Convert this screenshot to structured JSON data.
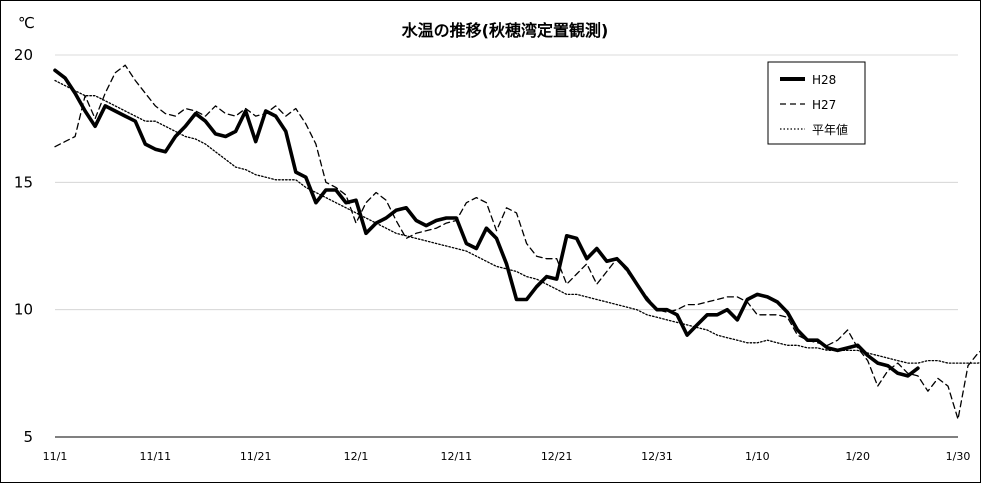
{
  "chart_data": {
    "type": "line",
    "title": "水温の推移(秋穂湾定置観測)",
    "ylabel": "℃",
    "xlabel": "",
    "ylim": [
      5,
      20
    ],
    "yticks": [
      5,
      10,
      15,
      20
    ],
    "x_tick_labels": [
      {
        "day": 0,
        "label": "11/1"
      },
      {
        "day": 10,
        "label": "11/11"
      },
      {
        "day": 20,
        "label": "11/21"
      },
      {
        "day": 30,
        "label": "12/1"
      },
      {
        "day": 40,
        "label": "12/11"
      },
      {
        "day": 50,
        "label": "12/21"
      },
      {
        "day": 60,
        "label": "12/31"
      },
      {
        "day": 70,
        "label": "1/10"
      },
      {
        "day": 80,
        "label": "1/20"
      },
      {
        "day": 90,
        "label": "1/30"
      }
    ],
    "grid": "horizontal",
    "legend_position": "top-right",
    "series": [
      {
        "name": "H28",
        "style": "solid-thick",
        "values": [
          19.4,
          19.1,
          18.5,
          17.8,
          17.2,
          18.0,
          17.8,
          17.6,
          17.4,
          16.5,
          16.3,
          16.2,
          16.8,
          17.2,
          17.7,
          17.4,
          16.9,
          16.8,
          17.0,
          17.8,
          16.6,
          17.8,
          17.6,
          17.0,
          15.4,
          15.2,
          14.2,
          14.7,
          14.7,
          14.2,
          14.3,
          13.0,
          13.4,
          13.6,
          13.9,
          14.0,
          13.5,
          13.3,
          13.5,
          13.6,
          13.6,
          12.6,
          12.4,
          13.2,
          12.8,
          11.8,
          10.4,
          10.4,
          10.9,
          11.3,
          11.2,
          12.9,
          12.8,
          12.0,
          12.4,
          11.9,
          12.0,
          11.6,
          11.0,
          10.4,
          10.0,
          10.0,
          9.8,
          9.0,
          9.4,
          9.8,
          9.8,
          10.0,
          9.6,
          10.4,
          10.6,
          10.5,
          10.3,
          9.9,
          9.2,
          8.8,
          8.8,
          8.5,
          8.4,
          8.5,
          8.6,
          8.2,
          7.9,
          7.8,
          7.5,
          7.4,
          7.7
        ],
        "color": "#000000"
      },
      {
        "name": "H27",
        "style": "dashed",
        "values": [
          16.4,
          16.6,
          16.8,
          18.4,
          17.5,
          18.5,
          19.3,
          19.6,
          19.0,
          18.5,
          18.0,
          17.7,
          17.6,
          17.9,
          17.8,
          17.6,
          18.0,
          17.7,
          17.6,
          17.9,
          17.6,
          17.7,
          18.0,
          17.6,
          17.9,
          17.3,
          16.5,
          15.0,
          14.8,
          14.5,
          13.4,
          14.2,
          14.6,
          14.3,
          13.5,
          12.8,
          13.0,
          13.1,
          13.2,
          13.4,
          13.5,
          14.2,
          14.4,
          14.2,
          13.1,
          14.0,
          13.8,
          12.6,
          12.1,
          12.0,
          12.0,
          11.0,
          11.4,
          11.8,
          11.0,
          11.5,
          12.0,
          11.5,
          11.0,
          10.5,
          10.0,
          9.9,
          10.0,
          10.2,
          10.2,
          10.3,
          10.4,
          10.5,
          10.5,
          10.3,
          9.8,
          9.8,
          9.8,
          9.7,
          9.0,
          8.8,
          8.7,
          8.6,
          8.8,
          9.2,
          8.5,
          8.0,
          7.0,
          7.6,
          7.9,
          7.5,
          7.4,
          6.8,
          7.3,
          7.0,
          5.7,
          7.8,
          8.3,
          8.6
        ],
        "color": "#000000"
      },
      {
        "name": "平年値",
        "style": "dotted",
        "values": [
          19.0,
          18.8,
          18.6,
          18.4,
          18.4,
          18.2,
          18.0,
          17.8,
          17.6,
          17.4,
          17.4,
          17.2,
          17.0,
          16.8,
          16.7,
          16.5,
          16.2,
          15.9,
          15.6,
          15.5,
          15.3,
          15.2,
          15.1,
          15.1,
          15.1,
          14.8,
          14.6,
          14.4,
          14.2,
          14.0,
          13.8,
          13.6,
          13.4,
          13.2,
          13.0,
          12.9,
          12.8,
          12.7,
          12.6,
          12.5,
          12.4,
          12.3,
          12.1,
          11.9,
          11.7,
          11.6,
          11.5,
          11.3,
          11.2,
          11.0,
          10.8,
          10.6,
          10.6,
          10.5,
          10.4,
          10.3,
          10.2,
          10.1,
          10.0,
          9.8,
          9.7,
          9.6,
          9.5,
          9.4,
          9.3,
          9.2,
          9.0,
          8.9,
          8.8,
          8.7,
          8.7,
          8.8,
          8.7,
          8.6,
          8.6,
          8.5,
          8.5,
          8.4,
          8.4,
          8.4,
          8.4,
          8.3,
          8.2,
          8.1,
          8.0,
          7.9,
          7.9,
          8.0,
          8.0,
          7.9,
          7.9,
          7.9,
          7.9,
          8.0,
          8.1
        ],
        "color": "#000000"
      }
    ]
  }
}
